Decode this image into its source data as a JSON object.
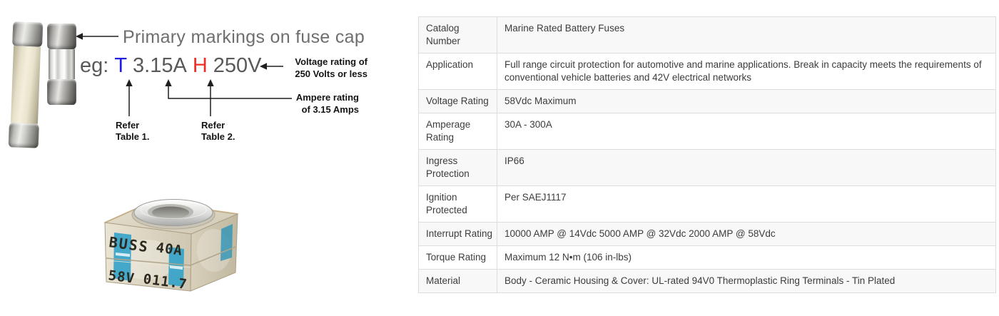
{
  "fuse_diagram": {
    "primary_note": "Primary markings on fuse cap",
    "example": {
      "prefix": "eg:",
      "type_code": "T",
      "ampere": "3.15A",
      "voltage_code": "H",
      "voltage": "250V"
    },
    "voltage_callout": "Voltage rating of\n250 Volts or less",
    "ampere_callout": "Ampere rating\nof 3.15 Amps",
    "refer_table1": "Refer\nTable 1.",
    "refer_table2": "Refer\nTable 2.",
    "colors": {
      "type_code_blue": "#1e1ee6",
      "voltage_code_red": "#ee2d26",
      "example_gray": "#59595b",
      "note_gray": "#6e6e6e"
    }
  },
  "fuse_photo": {
    "brand": "BUSS",
    "amp_marking": "40A",
    "volt_marking": "58V",
    "code_marking": "011.7",
    "stripe_color": "#35a3c9"
  },
  "spec_table": {
    "stripe_color": "#f8f8f8",
    "border_color": "#dddddd",
    "rows": [
      {
        "label": "Catalog\nNumber",
        "value": "Marine Rated Battery Fuses"
      },
      {
        "label": "Application",
        "value": "Full range circuit protection for automotive and marine applications. Break in capacity meets the requirements of conventional vehicle batteries and 42V electrical networks"
      },
      {
        "label": "Voltage Rating",
        "value": "58Vdc Maximum"
      },
      {
        "label": "Amperage\nRating",
        "value": "30A - 300A"
      },
      {
        "label": "Ingress\nProtection",
        "value": "IP66"
      },
      {
        "label": "Ignition\nProtected",
        "value": "Per SAEJ1117"
      },
      {
        "label": "Interrupt Rating",
        "value": "10000 AMP @ 14Vdc 5000 AMP @ 32Vdc 2000 AMP @ 58Vdc"
      },
      {
        "label": "Torque Rating",
        "value": "Maximum 12 N•m (106 in-lbs)"
      },
      {
        "label": "Material",
        "value": "Body - Ceramic Housing & Cover: UL-rated 94V0 Thermoplastic Ring Terminals - Tin Plated"
      }
    ]
  }
}
